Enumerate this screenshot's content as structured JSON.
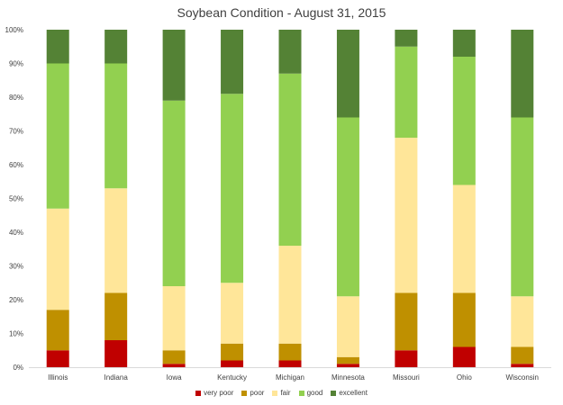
{
  "chart_data": {
    "type": "bar",
    "stacked": true,
    "title": "Soybean Condition - August 31, 2015",
    "categories": [
      "Illinois",
      "Indiana",
      "Iowa",
      "Kentucky",
      "Michigan",
      "Minnesota",
      "Missouri",
      "Ohio",
      "Wisconsin"
    ],
    "series": [
      {
        "name": "very poor",
        "color": "#c00000",
        "values": [
          5,
          8,
          1,
          2,
          2,
          1,
          5,
          6,
          1
        ]
      },
      {
        "name": "poor",
        "color": "#bf9000",
        "values": [
          12,
          14,
          4,
          5,
          5,
          2,
          17,
          16,
          5
        ]
      },
      {
        "name": "fair",
        "color": "#ffe699",
        "values": [
          30,
          31,
          19,
          18,
          29,
          18,
          46,
          32,
          15
        ]
      },
      {
        "name": "good",
        "color": "#92d050",
        "values": [
          43,
          37,
          55,
          56,
          51,
          53,
          27,
          38,
          53
        ]
      },
      {
        "name": "excellent",
        "color": "#548235",
        "values": [
          10,
          10,
          21,
          19,
          13,
          26,
          5,
          8,
          26
        ]
      }
    ],
    "ylim": [
      0,
      100
    ],
    "yticks": [
      "0%",
      "10%",
      "20%",
      "30%",
      "40%",
      "50%",
      "60%",
      "70%",
      "80%",
      "90%",
      "100%"
    ],
    "grid": false,
    "legend_position": "bottom"
  }
}
